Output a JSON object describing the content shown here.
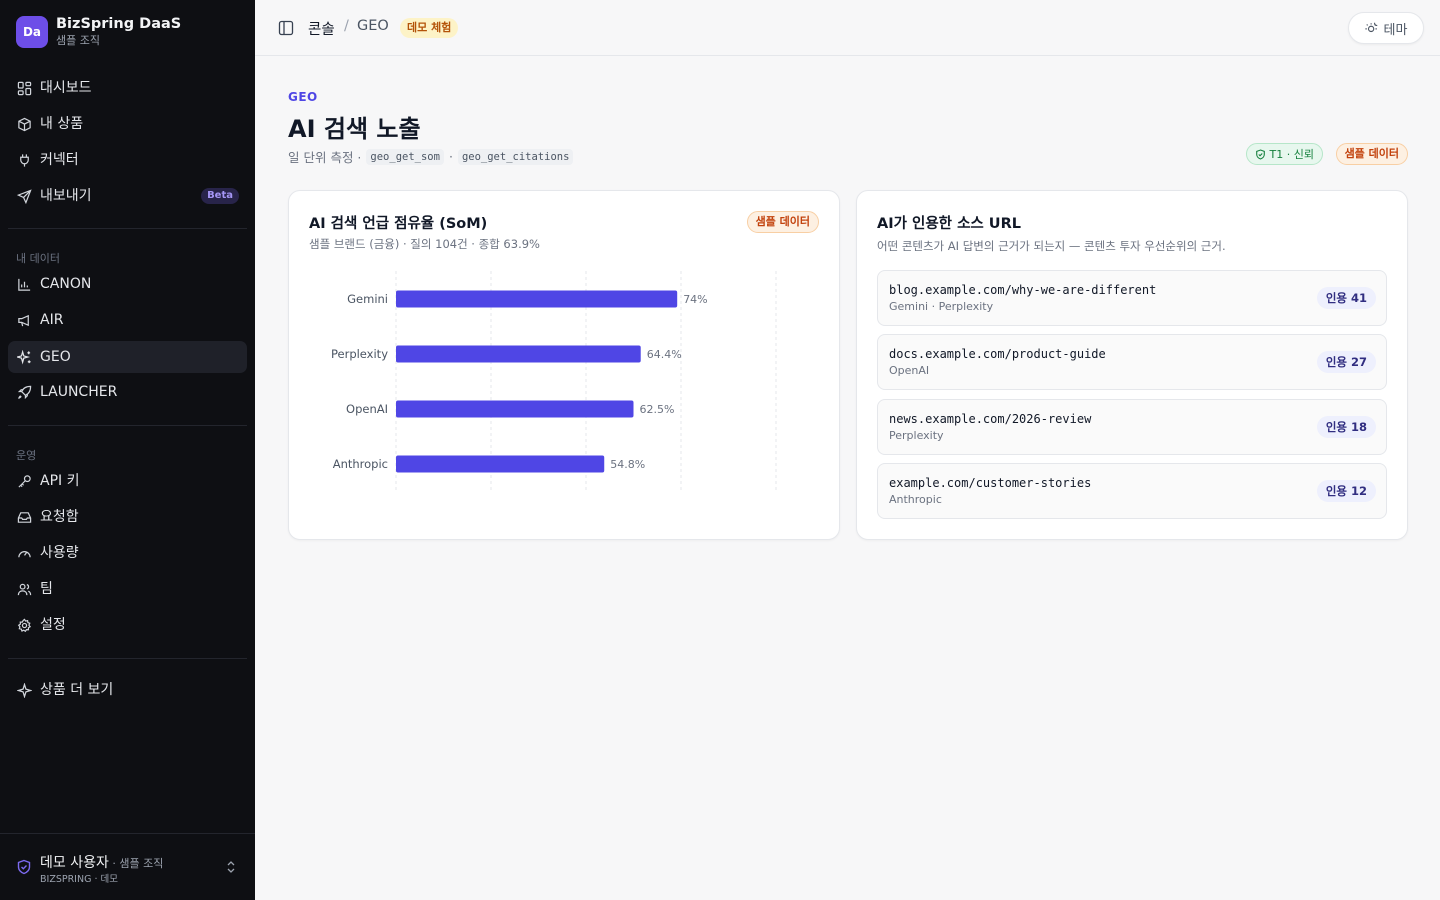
{
  "brand": {
    "logo": "Da",
    "name": "BizSpring DaaS",
    "org": "샘플 조직"
  },
  "sidebar": {
    "primary": [
      {
        "label": "대시보드",
        "icon": "dashboard-icon"
      },
      {
        "label": "내 상품",
        "icon": "package-icon"
      },
      {
        "label": "커넥터",
        "icon": "plug-icon"
      },
      {
        "label": "내보내기",
        "icon": "send-icon",
        "badge": "Beta"
      }
    ],
    "data_section_label": "내 데이터",
    "data": [
      {
        "label": "CANON",
        "icon": "bar-chart-icon"
      },
      {
        "label": "AIR",
        "icon": "megaphone-icon"
      },
      {
        "label": "GEO",
        "icon": "sparkles-icon",
        "active": true
      },
      {
        "label": "LAUNCHER",
        "icon": "rocket-icon"
      }
    ],
    "ops_section_label": "운영",
    "ops": [
      {
        "label": "API 키",
        "icon": "key-icon"
      },
      {
        "label": "요청함",
        "icon": "inbox-icon"
      },
      {
        "label": "사용량",
        "icon": "gauge-icon"
      },
      {
        "label": "팀",
        "icon": "users-icon"
      },
      {
        "label": "설정",
        "icon": "gear-icon"
      }
    ],
    "more": {
      "label": "상품 더 보기",
      "icon": "sparkle-icon"
    }
  },
  "user": {
    "name": "데모 사용자",
    "org": " · 샘플 조직",
    "sub": "BIZSPRING · 데모"
  },
  "topbar": {
    "breadcrumb_root": "콘솔",
    "breadcrumb_sep": "/",
    "breadcrumb_current": "GEO",
    "demo_badge": "데모 체험",
    "theme_label": "테마"
  },
  "page": {
    "eyebrow": "GEO",
    "title": "AI 검색 노출",
    "subtitle_prefix": "일 단위 측정 ·",
    "code1": "geo_get_som",
    "sep": "·",
    "code2": "geo_get_citations",
    "trust_badge": "T1 · 신뢰",
    "sample_badge": "샘플 데이터"
  },
  "som_card": {
    "title": "AI 검색 언급 점유율 (SoM)",
    "desc": "샘플 브랜드 (금융) · 질의 104건 · 종합 63.9%",
    "badge": "샘플 데이터"
  },
  "chart_data": {
    "type": "bar",
    "orientation": "horizontal",
    "categories": [
      "Gemini",
      "Perplexity",
      "OpenAI",
      "Anthropic"
    ],
    "values": [
      74,
      64.4,
      62.5,
      54.8
    ],
    "value_labels": [
      "74%",
      "64.4%",
      "62.5%",
      "54.8%"
    ],
    "xlim": [
      0,
      100
    ],
    "grid": true,
    "bar_color": "#4f46e5"
  },
  "citations_card": {
    "title": "AI가 인용한 소스 URL",
    "desc": "어떤 콘텐츠가 AI 답변의 근거가 되는지 — 콘텐츠 투자 우선순위의 근거.",
    "items": [
      {
        "url": "blog.example.com/why-we-are-different",
        "sources": "Gemini · Perplexity",
        "count": "인용 41"
      },
      {
        "url": "docs.example.com/product-guide",
        "sources": "OpenAI",
        "count": "인용 27"
      },
      {
        "url": "news.example.com/2026-review",
        "sources": "Perplexity",
        "count": "인용 18"
      },
      {
        "url": "example.com/customer-stories",
        "sources": "Anthropic",
        "count": "인용 12"
      }
    ]
  },
  "colors": {
    "accent": "#4f46e5",
    "sidebar_bg": "#0e0f13",
    "brand_logo": "#6d4ee8"
  }
}
